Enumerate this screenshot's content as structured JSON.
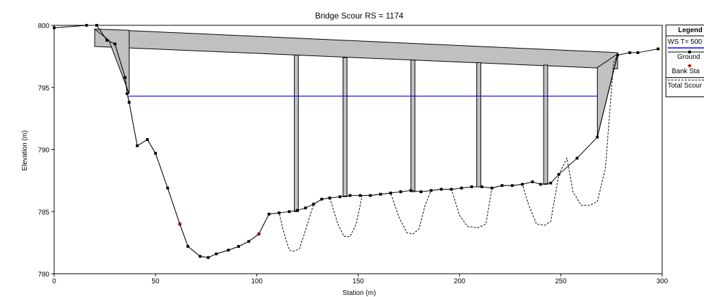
{
  "chart_data": {
    "type": "line",
    "title": "Bridge Scour RS = 1174",
    "xlabel": "Station (m)",
    "ylabel": "Elevation (m)",
    "xlim": [
      0,
      300
    ],
    "ylim": [
      780,
      800
    ],
    "xticks": [
      "0",
      "50",
      "100",
      "150",
      "200",
      "250",
      "300"
    ],
    "yticks": [
      "780",
      "785",
      "790",
      "795",
      "800"
    ],
    "legend_title": "Legend",
    "legend_placement": "right",
    "series": [
      {
        "name": "WS T= 500",
        "color": "#0000ff",
        "style": "solid",
        "x": [
          37,
          268
        ],
        "y": [
          794.3,
          794.3
        ]
      },
      {
        "name": "Ground",
        "color": "#000000",
        "style": "solid-markers",
        "x": [
          0,
          16,
          21,
          26,
          30,
          35,
          36,
          37,
          41,
          46,
          50,
          56,
          62,
          66,
          72,
          76,
          80,
          86,
          91,
          96,
          101,
          106,
          111,
          116,
          120,
          124,
          128,
          132,
          136,
          141,
          146,
          151,
          156,
          161,
          166,
          171,
          176,
          181,
          186,
          191,
          196,
          201,
          206,
          211,
          216,
          221,
          226,
          231,
          236,
          240,
          245,
          249,
          258,
          268,
          278,
          284,
          288,
          298
        ],
        "y": [
          799.8,
          800.0,
          800.0,
          798.8,
          798.5,
          795.8,
          794.5,
          793.8,
          790.3,
          790.8,
          789.7,
          786.9,
          784.0,
          782.2,
          781.4,
          781.3,
          781.6,
          781.9,
          782.2,
          782.6,
          783.2,
          784.8,
          784.9,
          785.0,
          785.1,
          785.3,
          785.6,
          786.0,
          786.1,
          786.2,
          786.3,
          786.3,
          786.3,
          786.4,
          786.5,
          786.6,
          786.7,
          786.6,
          786.7,
          786.8,
          786.8,
          786.9,
          787.0,
          787.0,
          786.9,
          787.1,
          787.1,
          787.2,
          787.4,
          787.2,
          787.3,
          788.0,
          789.3,
          791.0,
          797.6,
          797.8,
          797.8,
          798.1
        ]
      },
      {
        "name": "Bank Sta",
        "color": "#cc0000",
        "style": "markers",
        "x": [
          62,
          101
        ],
        "y": [
          784.0,
          783.2
        ]
      },
      {
        "name": "Total Scour",
        "color": "#000000",
        "style": "dashed",
        "x": [
          0,
          16,
          21,
          26,
          30,
          35,
          37,
          41,
          46,
          50,
          56,
          62,
          66,
          72,
          76,
          80,
          86,
          91,
          96,
          101,
          106,
          111,
          113,
          116,
          118,
          121,
          124,
          128,
          132,
          136,
          140,
          143,
          146,
          149,
          152,
          156,
          161,
          166,
          170,
          174,
          177,
          180,
          183,
          186,
          191,
          196,
          200,
          204,
          209,
          213,
          216,
          221,
          226,
          231,
          234,
          238,
          242,
          245,
          249,
          253,
          256,
          260,
          264,
          268,
          272,
          276,
          278
        ],
        "y": [
          799.8,
          800.0,
          800.0,
          798.8,
          798.5,
          795.8,
          793.8,
          790.3,
          790.8,
          789.7,
          786.9,
          784.0,
          782.2,
          781.4,
          781.3,
          781.6,
          781.9,
          782.2,
          782.6,
          783.2,
          784.8,
          784.9,
          783.5,
          781.9,
          781.8,
          782.0,
          783.5,
          785.6,
          786.0,
          786.1,
          784.0,
          783.0,
          783.0,
          784.0,
          786.3,
          786.3,
          786.4,
          786.5,
          784.6,
          783.3,
          783.2,
          783.6,
          785.5,
          786.7,
          786.8,
          786.8,
          784.7,
          783.8,
          783.7,
          784.0,
          786.9,
          787.1,
          787.1,
          787.2,
          785.6,
          784.0,
          783.9,
          784.2,
          788.0,
          789.3,
          786.6,
          785.5,
          785.5,
          785.8,
          788.5,
          797.0,
          797.6
        ]
      }
    ],
    "bridge": {
      "deck_upstream_x": [
        20,
        278
      ],
      "deck_high_chord_y": [
        799.7,
        797.8
      ],
      "deck_low_chord_y": [
        798.3,
        796.5
      ],
      "abutments": [
        {
          "x": [
            20,
            37,
            37,
            27
          ],
          "y": [
            799.7,
            799.6,
            794.5,
            798.8
          ]
        },
        {
          "x": [
            268,
            278,
            268
          ],
          "y": [
            796.6,
            797.7,
            791.0
          ]
        }
      ],
      "piers": [
        {
          "x0": 118.5,
          "x1": 120.5,
          "top": 797.6,
          "bottom": 785.0
        },
        {
          "x0": 142.5,
          "x1": 144.5,
          "top": 797.4,
          "bottom": 786.2
        },
        {
          "x0": 176,
          "x1": 178,
          "top": 797.2,
          "bottom": 786.6
        },
        {
          "x0": 208.5,
          "x1": 210.5,
          "top": 797.0,
          "bottom": 787.0
        },
        {
          "x0": 241.5,
          "x1": 243.5,
          "top": 796.8,
          "bottom": 787.2
        }
      ],
      "fill_color": "#c0c0c0"
    }
  },
  "legend": {
    "title": "Legend",
    "items": [
      {
        "label": "WS T= 500",
        "kind": "line",
        "color": "#0000ff"
      },
      {
        "label": "Ground",
        "kind": "line-marker",
        "color": "#000000"
      },
      {
        "label": "Bank Sta",
        "kind": "marker",
        "color": "#cc0000"
      },
      {
        "label": "Total Scour",
        "kind": "dashed",
        "color": "#000000"
      }
    ]
  }
}
